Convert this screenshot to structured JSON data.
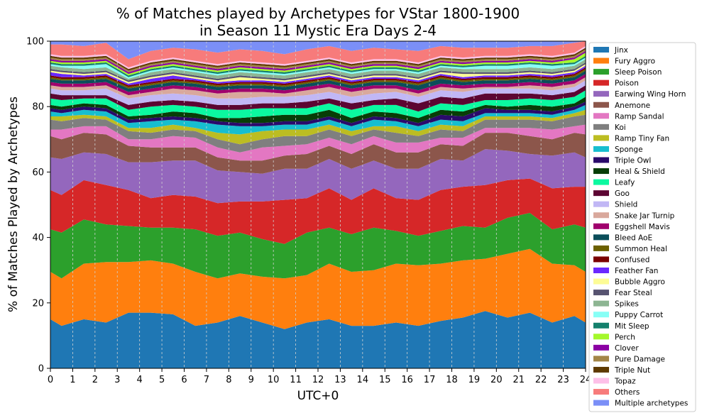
{
  "chart_data": {
    "type": "area",
    "stacked": true,
    "title_lines": [
      "% of Matches played by Archetypes for VStar 1800-1900",
      "in Season 11 Mystic Era Days 2-4"
    ],
    "xlabel": "UTC+0",
    "ylabel": "% of Matches Played by Archetypes",
    "xlim": [
      0,
      24
    ],
    "ylim": [
      0,
      100
    ],
    "x_ticks": [
      "0",
      "1",
      "2",
      "3",
      "4",
      "5",
      "6",
      "7",
      "8",
      "9",
      "10",
      "11",
      "12",
      "13",
      "14",
      "15",
      "16",
      "17",
      "18",
      "19",
      "20",
      "21",
      "22",
      "23",
      "24"
    ],
    "y_ticks": [
      "0",
      "20",
      "40",
      "60",
      "80",
      "100"
    ],
    "grid": "vertical dashed",
    "legend_position": "right",
    "x": [
      0,
      0.5,
      1.5,
      2.5,
      3.5,
      4.5,
      5.5,
      6.5,
      7.5,
      8.5,
      9.5,
      10.5,
      11.5,
      12.5,
      13.5,
      14.5,
      15.5,
      16.5,
      17.5,
      18.5,
      19.5,
      20.5,
      21.5,
      22.5,
      23.5,
      24
    ],
    "series": [
      {
        "name": "Jinx",
        "color": "#1f77b4",
        "values": [
          15,
          13,
          15,
          14,
          17,
          17,
          16.5,
          13,
          14,
          16,
          14,
          12,
          14,
          15,
          13,
          13,
          14,
          13,
          14.5,
          15.5,
          17.5,
          15.5,
          17,
          14,
          16,
          14
        ]
      },
      {
        "name": "Fury Aggro",
        "color": "#ff7f0e",
        "values": [
          14.5,
          14.5,
          17,
          18.5,
          15.5,
          16,
          15.5,
          16.5,
          13.5,
          13,
          14,
          15.5,
          14.5,
          17,
          16.5,
          17,
          18,
          18.5,
          17.5,
          17.5,
          16,
          19.5,
          19.5,
          18,
          15.5,
          15.5
        ]
      },
      {
        "name": "Sleep Poison",
        "color": "#2ca02c",
        "values": [
          13,
          14,
          13.5,
          11.5,
          11,
          10,
          11,
          13,
          13,
          12.5,
          11.5,
          10.5,
          13,
          11,
          11.5,
          13,
          10,
          9,
          10,
          10.5,
          9.5,
          11,
          11,
          10.5,
          12.5,
          13.5
        ]
      },
      {
        "name": "Poison",
        "color": "#d62728",
        "values": [
          12,
          11.5,
          12,
          12,
          11,
          9,
          10,
          10,
          10,
          9.5,
          11.5,
          13.5,
          10.5,
          12,
          10.5,
          12,
          10,
          11,
          12.5,
          12,
          13,
          11.5,
          10.5,
          12.5,
          11.5,
          12.5
        ]
      },
      {
        "name": "Earwing Wing Horn",
        "color": "#9467bd",
        "values": [
          10,
          11,
          8.5,
          9.5,
          8.5,
          11,
          10.5,
          11,
          10,
          9,
          8.5,
          9.5,
          9,
          9,
          9.5,
          8.5,
          9,
          9.5,
          9.5,
          8,
          11,
          9,
          7.5,
          10,
          10.5,
          9
        ]
      },
      {
        "name": "Anemone",
        "color": "#8c564b",
        "values": [
          6.5,
          6,
          6,
          6,
          5,
          4.5,
          4,
          4,
          4,
          3.5,
          4,
          4,
          4.5,
          4,
          4.5,
          5,
          5,
          5,
          4.5,
          4.5,
          5,
          5.5,
          5.5,
          5,
          6,
          7
        ]
      },
      {
        "name": "Ramp Sandal",
        "color": "#e377c2",
        "values": [
          2,
          3,
          2,
          2.5,
          2,
          2.5,
          3.5,
          3,
          3,
          2.5,
          4,
          3,
          3,
          2.5,
          3,
          2.5,
          3,
          3,
          2,
          2.5,
          1.5,
          1.5,
          2.5,
          3,
          2,
          3
        ]
      },
      {
        "name": "Koi",
        "color": "#7f7f7f",
        "values": [
          3,
          2.5,
          2.5,
          2,
          2.5,
          2,
          2,
          2,
          2.5,
          2.5,
          2.5,
          3,
          2.5,
          2.5,
          2.5,
          2,
          3,
          2,
          2.5,
          2,
          2.5,
          2.5,
          2.5,
          2.5,
          3,
          3
        ]
      },
      {
        "name": "Ramp Tiny Fan",
        "color": "#bcbd22",
        "values": [
          1,
          1.5,
          1,
          1,
          1,
          1.5,
          1.5,
          1,
          2,
          3,
          2.5,
          2,
          2,
          1.5,
          1.5,
          1,
          2,
          1.5,
          1.5,
          1.5,
          1,
          1,
          1,
          1,
          1,
          1.5
        ]
      },
      {
        "name": "Sponge",
        "color": "#17becf",
        "values": [
          1.5,
          1,
          1.5,
          1.5,
          1.5,
          2,
          1.5,
          2,
          2.5,
          2.5,
          1.5,
          1.5,
          1.5,
          1.5,
          1.5,
          2,
          1.5,
          1.5,
          1.5,
          1.5,
          1,
          1,
          1,
          1,
          1,
          1.5
        ]
      },
      {
        "name": "Triple Owl",
        "color": "#2a0a6b",
        "values": [
          1,
          1,
          1,
          1,
          1,
          1,
          1,
          1,
          1,
          1,
          1,
          1,
          1,
          1,
          1,
          1,
          1,
          1,
          1.5,
          1.5,
          1.5,
          1,
          1,
          1,
          1,
          1
        ]
      },
      {
        "name": "Heal & Shield",
        "color": "#073d07",
        "values": [
          1,
          1,
          1,
          1,
          1,
          1,
          1.5,
          1.5,
          1,
          1.5,
          2,
          2,
          2,
          2,
          1.5,
          1.5,
          1.5,
          1.5,
          1.5,
          1.5,
          1,
          1,
          1.5,
          1.5,
          1,
          1.5
        ]
      },
      {
        "name": "Leafy",
        "color": "#0bf9a0",
        "values": [
          2,
          2,
          1.5,
          2,
          2,
          2.5,
          2,
          2,
          2.5,
          2.5,
          2.5,
          2,
          2,
          2,
          2.5,
          2,
          2.5,
          2,
          2,
          2,
          1.5,
          2,
          2,
          2,
          2,
          2
        ]
      },
      {
        "name": "Goo",
        "color": "#5c0532",
        "values": [
          1.5,
          1.5,
          1,
          1,
          1.5,
          1.5,
          1.5,
          1.5,
          1.5,
          1.5,
          1.5,
          1.5,
          2,
          1.5,
          2,
          1.5,
          2,
          2.5,
          2,
          2,
          2,
          2,
          1.5,
          1.5,
          1.5,
          1.5
        ]
      },
      {
        "name": "Shield",
        "color": "#c1b7f5",
        "values": [
          1.5,
          1.5,
          1.5,
          2,
          2,
          2,
          2,
          2,
          2,
          2,
          2,
          2,
          2,
          2,
          2,
          2,
          2,
          2,
          2,
          2,
          1.5,
          1.5,
          1.5,
          1.5,
          1.5,
          1.5
        ]
      },
      {
        "name": "Snake Jar Turnip",
        "color": "#d9a89c",
        "values": [
          1,
          1,
          1,
          1,
          1,
          1,
          1.5,
          1.5,
          1.5,
          2,
          1.5,
          1,
          1.5,
          1.5,
          1.5,
          1.5,
          1,
          1,
          1,
          1,
          0.5,
          0.5,
          1,
          1,
          1,
          1
        ]
      },
      {
        "name": "Eggshell Mavis",
        "color": "#a0006d",
        "values": [
          1,
          1,
          1,
          1,
          1,
          1,
          1,
          1,
          1,
          1,
          1,
          1,
          1,
          1,
          1,
          1,
          1,
          1,
          1,
          1,
          1,
          1,
          1,
          1,
          1,
          1
        ]
      },
      {
        "name": "Bleed AoE",
        "color": "#0b4e5a",
        "values": [
          1,
          1,
          1,
          1,
          1,
          1,
          1,
          1,
          1,
          1,
          1,
          1,
          1,
          1,
          1,
          1,
          1,
          1.5,
          1.5,
          1,
          1,
          1,
          1,
          1,
          1,
          1
        ]
      },
      {
        "name": "Summon Heal",
        "color": "#6b6000",
        "values": [
          0.5,
          0.5,
          0.5,
          0.5,
          0.5,
          0.5,
          0.5,
          0.5,
          0.5,
          0.5,
          0.5,
          0.5,
          0.5,
          0.5,
          0.5,
          0.5,
          0.5,
          0.5,
          0.5,
          0.5,
          0.5,
          0.5,
          0.5,
          0.5,
          0.5,
          0.5
        ]
      },
      {
        "name": "Confused",
        "color": "#7a0000",
        "values": [
          0.5,
          0.5,
          0.5,
          0.5,
          0.5,
          0.5,
          0.5,
          0.5,
          0.5,
          0.5,
          0.5,
          0.5,
          0.5,
          0.5,
          0.5,
          0.5,
          0.5,
          0.5,
          0.5,
          0.5,
          0.5,
          0.5,
          0.5,
          0.5,
          0.5,
          0.5
        ]
      },
      {
        "name": "Feather Fan",
        "color": "#6a28ff",
        "values": [
          1,
          1,
          0.5,
          0.5,
          0.5,
          1,
          1,
          0.5,
          0.5,
          0.5,
          0.5,
          0.5,
          0.5,
          0.5,
          0.5,
          0.5,
          0.5,
          0.5,
          0.5,
          0.5,
          0.5,
          0.5,
          0.5,
          0.5,
          0.5,
          0.5
        ]
      },
      {
        "name": "Bubble Aggro",
        "color": "#fdfc96",
        "values": [
          0.5,
          0.5,
          0.5,
          0.5,
          0.5,
          0.5,
          0.5,
          0.5,
          0.5,
          1,
          0.5,
          0.5,
          0.5,
          0.5,
          0.5,
          0.5,
          0.5,
          0.5,
          0.5,
          1,
          0.5,
          0.5,
          0.5,
          0.5,
          0.5,
          0.5
        ]
      },
      {
        "name": "Fear Steal",
        "color": "#575370",
        "values": [
          0.5,
          0.5,
          0.5,
          0.5,
          0.5,
          0.5,
          0.5,
          0.5,
          0.5,
          0.5,
          0.5,
          0.5,
          0.5,
          0.5,
          0.5,
          0.5,
          0.5,
          0.5,
          0.5,
          0.5,
          0.5,
          0.5,
          0.5,
          0.5,
          0.5,
          0.5
        ]
      },
      {
        "name": "Spikes",
        "color": "#8db592",
        "values": [
          1,
          1,
          1,
          1,
          0.5,
          1,
          1,
          1,
          1,
          1,
          1,
          1,
          1,
          1,
          1,
          1,
          1,
          1,
          1,
          1,
          1,
          1,
          1,
          1,
          1,
          1
        ]
      },
      {
        "name": "Puppy Carrot",
        "color": "#88fff6",
        "values": [
          0.5,
          0.5,
          1,
          1,
          0.5,
          0.5,
          0.5,
          0.5,
          0.5,
          0.5,
          0.5,
          0.5,
          0.5,
          0.5,
          0.5,
          0.5,
          0.5,
          0.5,
          0.5,
          0.5,
          1,
          1,
          1,
          1,
          0.5,
          0.5
        ]
      },
      {
        "name": "Mit Sleep",
        "color": "#14806d",
        "values": [
          0.5,
          0.5,
          0.5,
          0.5,
          0.5,
          0.5,
          0.5,
          0.5,
          0.5,
          0.5,
          0.5,
          0.5,
          0.5,
          0.5,
          0.5,
          0.5,
          0.5,
          0.5,
          0.5,
          0.5,
          0.5,
          0.5,
          0.5,
          0.5,
          0.5,
          0.5
        ]
      },
      {
        "name": "Perch",
        "color": "#a4f82b",
        "values": [
          0.5,
          0.5,
          0.5,
          0.5,
          0.5,
          0.5,
          0.5,
          0.5,
          0.5,
          0.5,
          0.5,
          0.5,
          0.5,
          0.5,
          0.5,
          0.5,
          0.5,
          0.5,
          0.5,
          0.5,
          0.5,
          0.5,
          0.5,
          0.5,
          1,
          1
        ]
      },
      {
        "name": "Clover",
        "color": "#8b00a3",
        "values": [
          0.5,
          0.5,
          0.5,
          0.5,
          0.5,
          0.5,
          0.5,
          0.5,
          0.5,
          0.5,
          0.5,
          0.5,
          0.5,
          0.5,
          0.5,
          0.5,
          0.5,
          0.5,
          0.5,
          0.5,
          0.5,
          0.5,
          0.5,
          0.5,
          0.5,
          0.5
        ]
      },
      {
        "name": "Pure Damage",
        "color": "#a38647",
        "values": [
          0.5,
          0.5,
          0.5,
          0.5,
          0.5,
          0.5,
          0.5,
          0.5,
          0.5,
          0.5,
          0.5,
          0.5,
          0.5,
          0.5,
          0.5,
          0.5,
          0.5,
          0.5,
          0.5,
          0.5,
          0.5,
          0.5,
          0.5,
          0.5,
          0.5,
          0.5
        ]
      },
      {
        "name": "Triple Nut",
        "color": "#5e3a00",
        "values": [
          0.5,
          0.5,
          0.5,
          0.5,
          0.5,
          0.5,
          0.5,
          0.5,
          0.5,
          0.5,
          0.5,
          0.5,
          0.5,
          0.5,
          0.5,
          0.5,
          0.5,
          0.5,
          0.5,
          0.5,
          0.5,
          0.5,
          0.5,
          0.5,
          0.5,
          0.5
        ]
      },
      {
        "name": "Topaz",
        "color": "#fdc0e8",
        "values": [
          0.5,
          0.5,
          0.5,
          0.5,
          0.5,
          0.5,
          0.5,
          0.5,
          0.5,
          0.5,
          0.5,
          0.5,
          0.5,
          0.5,
          0.5,
          0.5,
          0.5,
          0.5,
          0.5,
          0.5,
          0.5,
          0.5,
          0.5,
          0.5,
          0.5,
          0.5
        ]
      },
      {
        "name": "Others",
        "color": "#f77b7b",
        "values": [
          3,
          3.5,
          3,
          3.5,
          2.5,
          3,
          3,
          3.5,
          3.5,
          3.5,
          3.5,
          3,
          3.5,
          3.5,
          3.5,
          3.5,
          3,
          3.5,
          3,
          3,
          2.5,
          2.5,
          2.5,
          3,
          3,
          3
        ]
      },
      {
        "name": "Multiple archetypes",
        "color": "#7b8ff7",
        "values": [
          4,
          5,
          5,
          4.5,
          5.5,
          5,
          5,
          5.5,
          5,
          4.5,
          4.5,
          5.5,
          4.5,
          4.5,
          4.5,
          4.5,
          5,
          4,
          4,
          5,
          4,
          4,
          4.5,
          3.5,
          3,
          3.5
        ]
      }
    ]
  }
}
